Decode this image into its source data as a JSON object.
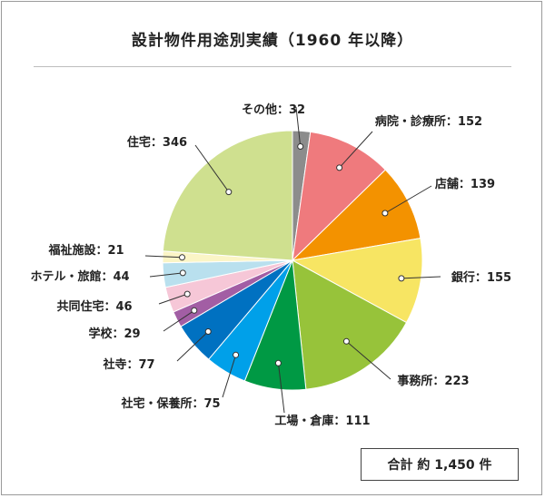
{
  "chart_data": {
    "type": "pie",
    "title": "設計物件用途別実績（1960 年以降）",
    "start_angle_deg": 0,
    "direction": "clockwise",
    "slices": [
      {
        "label": "その他：32",
        "value": 32,
        "color": "#8c8c8c"
      },
      {
        "label": "病院・診療所：152",
        "value": 152,
        "color": "#ef7a7d"
      },
      {
        "label": "店舗：139",
        "value": 139,
        "color": "#f39200"
      },
      {
        "label": "銀行：155",
        "value": 155,
        "color": "#f7e563"
      },
      {
        "label": "事務所：223",
        "value": 223,
        "color": "#97c33a"
      },
      {
        "label": "工場・倉庫：111",
        "value": 111,
        "color": "#009944"
      },
      {
        "label": "社宅・保養所：75",
        "value": 75,
        "color": "#00a0e9"
      },
      {
        "label": "社寺：77",
        "value": 77,
        "color": "#0071c1"
      },
      {
        "label": "学校：29",
        "value": 29,
        "color": "#a25ea4"
      },
      {
        "label": "共同住宅：46",
        "value": 46,
        "color": "#f6c7d7"
      },
      {
        "label": "ホテル・旅館：44",
        "value": 44,
        "color": "#b9e0ee"
      },
      {
        "label": "福祉施設：21",
        "value": 21,
        "color": "#fbf5c6"
      },
      {
        "label": "住宅：346",
        "value": 346,
        "color": "#cfe08f"
      }
    ],
    "total_label": "合計 約 1,450 件"
  }
}
